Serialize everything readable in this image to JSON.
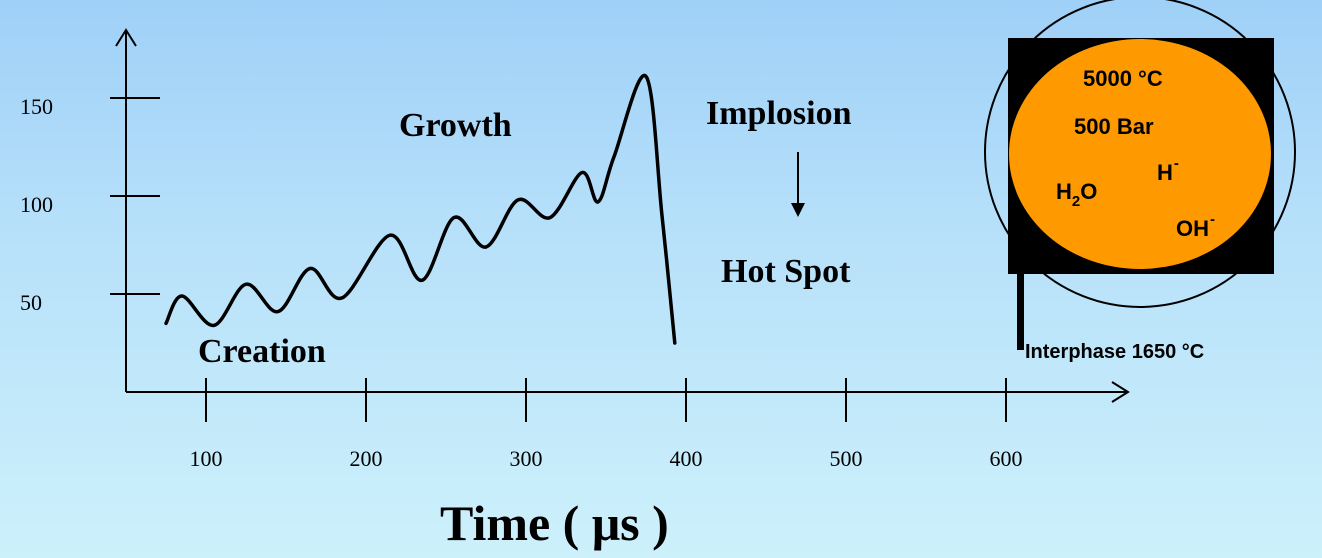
{
  "chart_data": {
    "type": "line",
    "x_ticks": [
      "100",
      "200",
      "300",
      "400",
      "500",
      "600"
    ],
    "y_ticks": [
      "50",
      "100",
      "150"
    ],
    "xlabel": "Time ( μs )",
    "ylabel": "",
    "xlim": [
      50,
      680
    ],
    "ylim": [
      0,
      200
    ],
    "series": [
      {
        "x": [
          75,
          85,
          105,
          125,
          145,
          165,
          185,
          215,
          235,
          255,
          275,
          295,
          315,
          335,
          345,
          355,
          375,
          385,
          393
        ],
        "values": [
          35,
          49,
          34,
          55,
          41,
          63,
          48,
          80,
          57,
          89,
          74,
          98,
          89,
          112,
          97,
          120,
          161,
          90,
          25
        ]
      }
    ]
  },
  "stages": {
    "creation": "Creation",
    "growth": "Growth",
    "implosion": "Implosion",
    "hot_spot": "Hot Spot"
  },
  "bubble": {
    "temperature": "5000 °C",
    "pressure": "500 Bar",
    "h_minus": "H",
    "h_minus_sup": "-",
    "h2o": "H",
    "h2o_sub": "2",
    "h2o_tail": "O",
    "oh_minus": "OH",
    "oh_minus_sup": "-",
    "interphase": "Interphase 1650 °C",
    "core_color": "#ff9900"
  }
}
